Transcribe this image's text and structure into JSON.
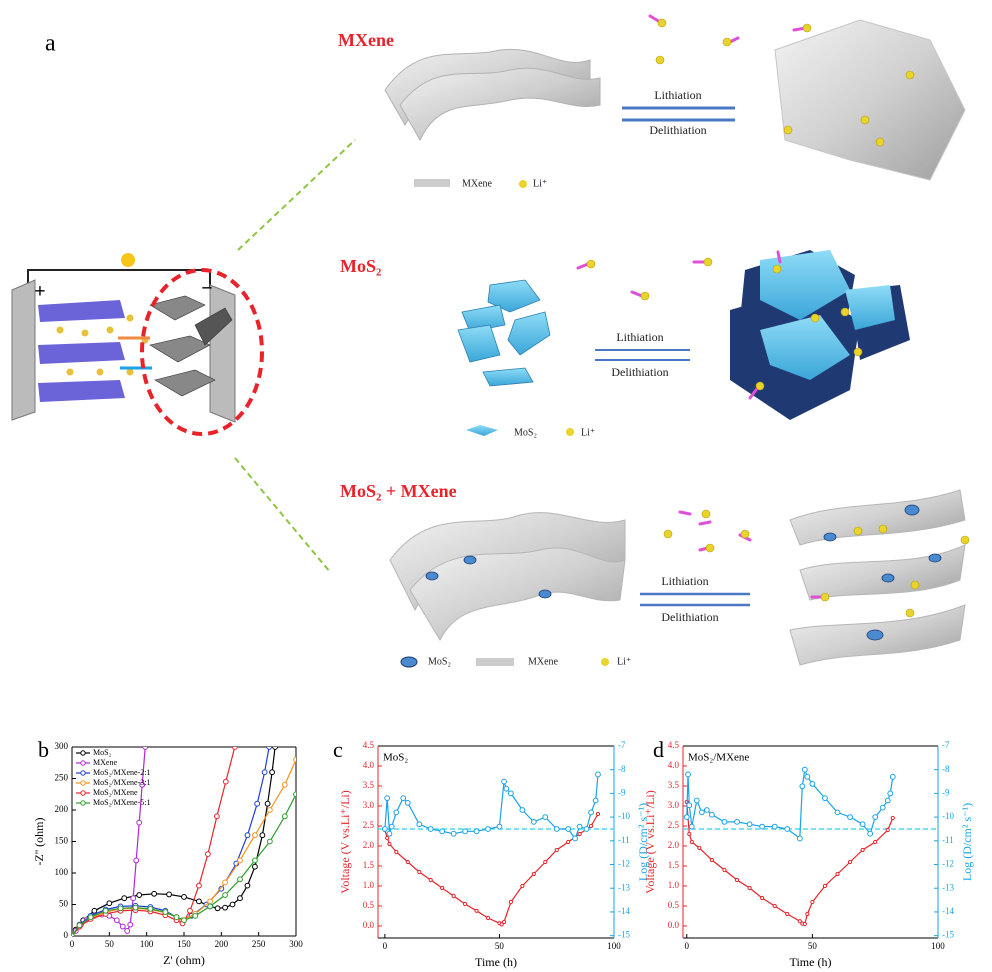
{
  "diagram": {
    "panel_label": "a",
    "battery": {
      "positive": "+",
      "negative": "−"
    },
    "mxene": {
      "title": "MXene",
      "forward": "Lithiation",
      "reverse": "Delithiation",
      "legend": [
        "MXene",
        "Li⁺"
      ]
    },
    "mos2": {
      "title": "MoS₂",
      "forward": "Lithiation",
      "reverse": "Delithiation",
      "legend": [
        "MoS₂",
        "Li⁺"
      ]
    },
    "composite": {
      "title": "MoS₂ + MXene",
      "forward": "Lithiation",
      "reverse": "Delithiation",
      "legend": [
        "MoS₂",
        "MXene",
        "Li⁺"
      ]
    }
  },
  "chart_data": [
    {
      "type": "line",
      "panel_label": "b",
      "xlabel": "Z' (ohm)",
      "ylabel": "-Z'' (ohm)",
      "xlim": [
        0,
        300
      ],
      "ylim": [
        0,
        300
      ],
      "xticks": [
        0,
        50,
        100,
        150,
        200,
        250,
        300
      ],
      "yticks": [
        0,
        50,
        100,
        150,
        200,
        250,
        300
      ],
      "legend": "upper left",
      "markers": true,
      "series": [
        {
          "name": "MoS₂",
          "color": "#000000",
          "x": [
            0,
            5,
            15,
            30,
            50,
            70,
            90,
            110,
            130,
            150,
            170,
            185,
            195,
            205,
            215,
            225,
            235,
            245,
            255,
            262,
            268,
            272
          ],
          "values": [
            0,
            10,
            25,
            40,
            52,
            60,
            65,
            67,
            66,
            62,
            55,
            47,
            44,
            45,
            50,
            60,
            80,
            110,
            160,
            210,
            260,
            300
          ]
        },
        {
          "name": "MXene",
          "color": "#b026d6",
          "x": [
            0,
            5,
            12,
            20,
            30,
            40,
            50,
            60,
            68,
            74,
            78,
            82,
            86,
            90,
            94,
            98
          ],
          "values": [
            0,
            8,
            18,
            26,
            32,
            34,
            32,
            25,
            15,
            8,
            18,
            60,
            120,
            180,
            240,
            300
          ]
        },
        {
          "name": "MoS₂/MXene-2:1",
          "color": "#1f3fd8",
          "x": [
            0,
            10,
            25,
            45,
            65,
            85,
            105,
            125,
            140,
            148,
            160,
            180,
            200,
            220,
            235,
            248,
            258,
            264
          ],
          "values": [
            0,
            18,
            32,
            42,
            47,
            48,
            46,
            40,
            30,
            25,
            32,
            50,
            75,
            115,
            160,
            210,
            260,
            300
          ]
        },
        {
          "name": "MoS₂/MXene-3:1",
          "color": "#f7931e",
          "x": [
            0,
            10,
            25,
            45,
            65,
            85,
            105,
            125,
            140,
            148,
            165,
            185,
            205,
            225,
            245,
            265,
            285,
            300
          ],
          "values": [
            0,
            15,
            28,
            38,
            43,
            44,
            42,
            37,
            30,
            25,
            35,
            55,
            85,
            120,
            160,
            200,
            240,
            280
          ]
        },
        {
          "name": "MoS₂/MXene",
          "color": "#e8232b",
          "x": [
            0,
            10,
            25,
            45,
            65,
            85,
            105,
            125,
            140,
            148,
            158,
            170,
            182,
            194,
            206,
            218
          ],
          "values": [
            0,
            15,
            27,
            35,
            40,
            41,
            39,
            33,
            25,
            20,
            40,
            80,
            130,
            190,
            245,
            300
          ]
        },
        {
          "name": "MoS₂/MXene-5:1",
          "color": "#2ea02e",
          "x": [
            0,
            10,
            25,
            45,
            65,
            85,
            105,
            125,
            140,
            150,
            165,
            185,
            205,
            225,
            245,
            265,
            285,
            300
          ],
          "values": [
            0,
            17,
            30,
            40,
            44,
            45,
            43,
            38,
            30,
            25,
            32,
            47,
            65,
            90,
            120,
            150,
            190,
            225
          ]
        }
      ]
    },
    {
      "type": "line",
      "panel_label": "c",
      "annotation": "MoS₂",
      "xlabel": "Time (h)",
      "ylabel": "Voltage (V vs.Li⁺/Li)",
      "y2label": "Log (D/cm² s⁻¹)",
      "xlim": [
        -3,
        100
      ],
      "ylim": [
        -0.3,
        4.5
      ],
      "y2lim": [
        -15.1,
        -7
      ],
      "xticks": [
        0,
        50,
        100
      ],
      "yticks": [
        {
          "value": 0,
          "label": "0.0"
        },
        0.5,
        {
          "value": 1,
          "label": "1.0"
        },
        1.5,
        {
          "value": 2,
          "label": "2.0"
        },
        2.5,
        {
          "value": 3,
          "label": "3.0"
        },
        3.5,
        {
          "value": 4,
          "label": "4.0"
        },
        4.5
      ],
      "y2ticks": [
        -15,
        -14,
        -13,
        -12,
        -11,
        -10,
        -9,
        -8,
        -7
      ],
      "markers": true,
      "reference_line": {
        "value": -10.5,
        "axis": "y2",
        "color": "#4dd9f0"
      },
      "series": [
        {
          "color": "#e8232b",
          "x": [
            0,
            1,
            2,
            5,
            10,
            15,
            20,
            25,
            30,
            35,
            40,
            45,
            50,
            51,
            52,
            55,
            60,
            65,
            70,
            75,
            80,
            85,
            90,
            93
          ],
          "values": [
            2.4,
            2.2,
            2.05,
            1.85,
            1.6,
            1.35,
            1.15,
            0.95,
            0.75,
            0.55,
            0.38,
            0.2,
            0.07,
            0.04,
            0.1,
            0.6,
            1.0,
            1.3,
            1.6,
            1.9,
            2.1,
            2.3,
            2.5,
            2.8
          ]
        },
        {
          "color": "#1aa3e8",
          "axis": "y2",
          "x": [
            0,
            1,
            2,
            3,
            5,
            8,
            10,
            15,
            20,
            25,
            30,
            35,
            40,
            45,
            50,
            52,
            53,
            55,
            60,
            65,
            70,
            75,
            80,
            83,
            85,
            88,
            90,
            92,
            93
          ],
          "values": [
            -10.5,
            -9.2,
            -10.7,
            -10.4,
            -9.8,
            -9.2,
            -9.4,
            -10.3,
            -10.5,
            -10.6,
            -10.7,
            -10.6,
            -10.6,
            -10.5,
            -10.4,
            -8.5,
            -8.8,
            -9.0,
            -9.7,
            -10.2,
            -10.0,
            -10.5,
            -10.5,
            -10.9,
            -10.4,
            -10.5,
            -9.8,
            -9.3,
            -8.2
          ]
        }
      ]
    },
    {
      "type": "line",
      "panel_label": "d",
      "annotation": "MoS₂/MXene",
      "xlabel": "Time (h)",
      "ylabel": "Voltage (V vs.Li⁺/Li)",
      "y2label": "Log (D/cm² s⁻¹)",
      "xlim": [
        -1.5,
        100
      ],
      "ylim": [
        -0.3,
        4.5
      ],
      "y2lim": [
        -15.1,
        -7
      ],
      "xticks": [
        0,
        50,
        100
      ],
      "yticks": [
        {
          "value": 0,
          "label": "0.0"
        },
        0.5,
        {
          "value": 1,
          "label": "1.0"
        },
        1.5,
        {
          "value": 2,
          "label": "2.0"
        },
        2.5,
        {
          "value": 3,
          "label": "3.0"
        },
        3.5,
        {
          "value": 4,
          "label": "4.0"
        },
        4.5
      ],
      "y2ticks": [
        -15,
        -14,
        -13,
        -12,
        -11,
        -10,
        -9,
        -8,
        -7
      ],
      "markers": true,
      "reference_line": {
        "value": -10.5,
        "axis": "y2",
        "color": "#4dd9f0"
      },
      "series": [
        {
          "color": "#e8232b",
          "x": [
            0,
            1,
            2,
            5,
            10,
            15,
            20,
            25,
            30,
            35,
            40,
            45,
            46,
            47,
            48,
            50,
            55,
            60,
            65,
            70,
            75,
            80,
            82
          ],
          "values": [
            3.1,
            2.3,
            2.1,
            1.95,
            1.65,
            1.4,
            1.15,
            0.95,
            0.7,
            0.5,
            0.3,
            0.12,
            0.06,
            0.05,
            0.3,
            0.6,
            1.0,
            1.3,
            1.6,
            1.9,
            2.1,
            2.4,
            2.7
          ]
        },
        {
          "color": "#1aa3e8",
          "axis": "y2",
          "x": [
            0,
            0.5,
            1,
            2,
            4,
            6,
            8,
            10,
            15,
            20,
            25,
            30,
            35,
            40,
            45,
            46,
            47,
            48,
            50,
            55,
            60,
            65,
            70,
            73,
            75,
            78,
            80,
            81,
            82
          ],
          "values": [
            -10.0,
            -8.2,
            -9.5,
            -10.4,
            -9.3,
            -9.8,
            -9.7,
            -9.9,
            -10.2,
            -10.2,
            -10.3,
            -10.4,
            -10.4,
            -10.5,
            -10.9,
            -8.7,
            -8.0,
            -8.3,
            -8.6,
            -9.2,
            -9.8,
            -10.0,
            -10.3,
            -10.7,
            -10.0,
            -9.6,
            -9.3,
            -9.0,
            -8.3
          ]
        }
      ]
    }
  ]
}
